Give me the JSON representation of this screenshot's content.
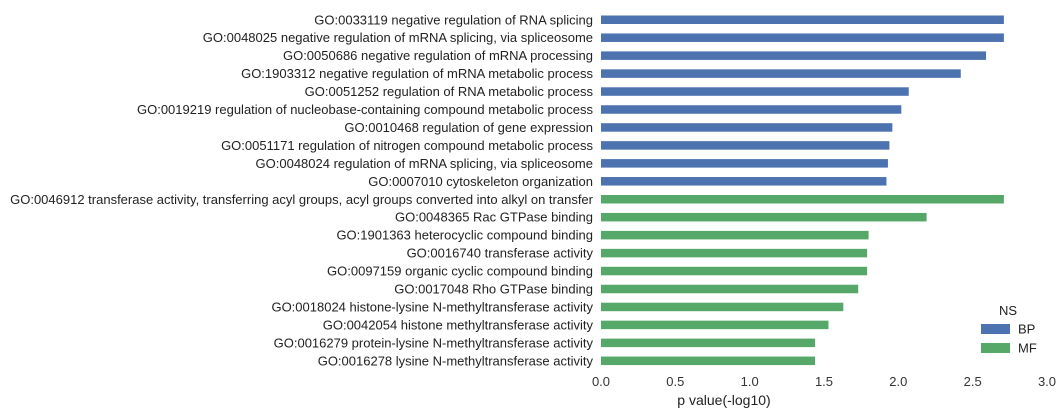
{
  "chart_data": {
    "type": "bar",
    "orientation": "horizontal",
    "xlabel": "p value(-log10)",
    "xlim": [
      0.0,
      3.0
    ],
    "xticks": [
      "0.0",
      "0.5",
      "1.0",
      "1.5",
      "2.0",
      "2.5",
      "3.0"
    ],
    "grid": false,
    "legend": {
      "title": "NS",
      "placement": "bottom-right",
      "entries": [
        {
          "name": "BP",
          "color": "#4C72B0"
        },
        {
          "name": "MF",
          "color": "#55A868"
        }
      ]
    },
    "series": [
      {
        "name": "BP",
        "color": "#4C72B0",
        "categories": [
          "GO:0033119 negative regulation of RNA splicing",
          "GO:0048025 negative regulation of mRNA splicing, via spliceosome",
          "GO:0050686 negative regulation of mRNA processing",
          "GO:1903312 negative regulation of mRNA metabolic process",
          "GO:0051252 regulation of RNA metabolic process",
          "GO:0019219 regulation of nucleobase-containing compound metabolic process",
          "GO:0010468 regulation of gene expression",
          "GO:0051171 regulation of nitrogen compound metabolic process",
          "GO:0048024 regulation of mRNA splicing, via spliceosome",
          "GO:0007010 cytoskeleton organization"
        ],
        "values": [
          2.71,
          2.71,
          2.59,
          2.42,
          2.07,
          2.02,
          1.96,
          1.94,
          1.93,
          1.92
        ]
      },
      {
        "name": "MF",
        "color": "#55A868",
        "categories": [
          "GO:0046912 transferase activity, transferring acyl groups, acyl groups converted into alkyl on transfer",
          "GO:0048365 Rac GTPase binding",
          "GO:1901363 heterocyclic compound binding",
          "GO:0016740 transferase activity",
          "GO:0097159 organic cyclic compound binding",
          "GO:0017048 Rho GTPase binding",
          "GO:0018024 histone-lysine N-methyltransferase activity",
          "GO:0042054 histone methyltransferase activity",
          "GO:0016279 protein-lysine N-methyltransferase activity",
          "GO:0016278 lysine N-methyltransferase activity"
        ],
        "values": [
          2.71,
          2.19,
          1.8,
          1.79,
          1.79,
          1.73,
          1.63,
          1.53,
          1.44,
          1.44
        ]
      }
    ]
  }
}
